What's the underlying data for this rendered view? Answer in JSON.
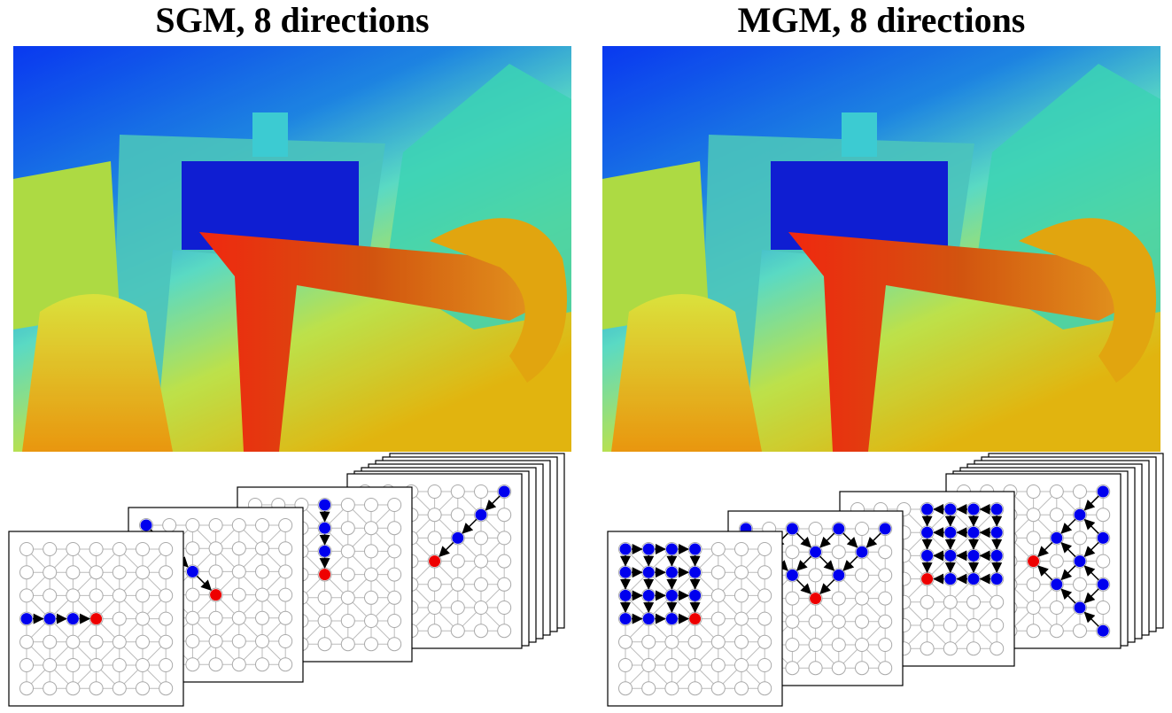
{
  "panels": [
    {
      "title": "SGM, 8 directions"
    },
    {
      "title": "MGM, 8 directions"
    }
  ]
}
